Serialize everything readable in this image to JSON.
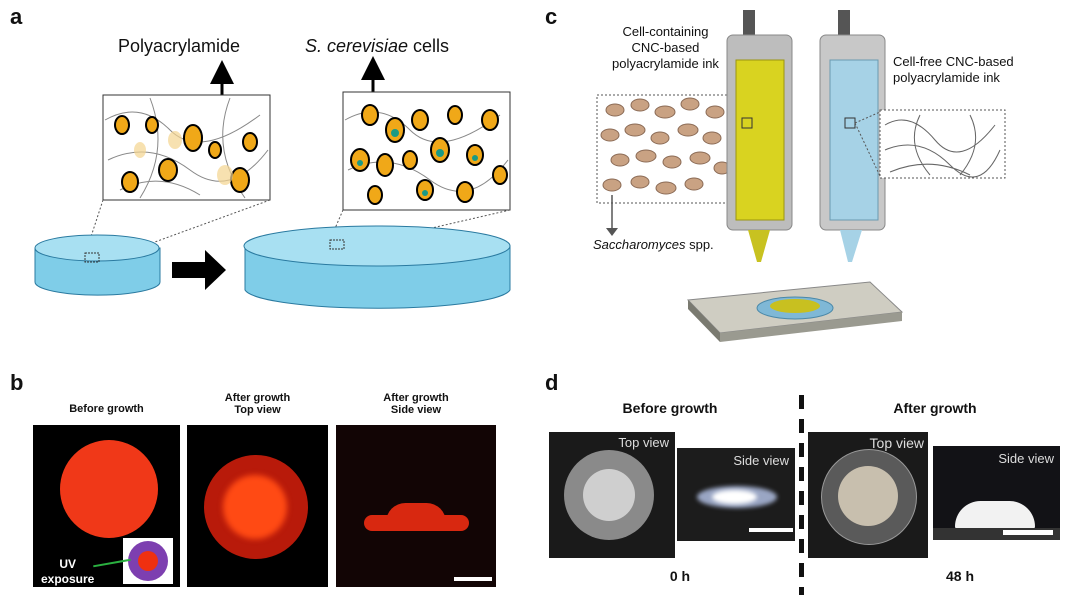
{
  "panels": {
    "a": {
      "label": "a",
      "matrix_label": "Polyacrylamide",
      "cells_label_italic": "S. cerevisiae",
      "cells_label_rest": " cells"
    },
    "b": {
      "label": "b",
      "titles": [
        "Before growth",
        "After growth\nTop view",
        "After growth\nSide view"
      ],
      "inset_label": "UV\nexposure"
    },
    "c": {
      "label": "c",
      "ink_cell": "Cell-containing\nCNC-based\npolyacrylamide ink",
      "ink_free": "Cell-free CNC-based\npolyacrylamide ink",
      "species_italic": "Saccharomyces",
      "species_rest": " spp."
    },
    "d": {
      "label": "d",
      "before": "Before growth",
      "after": "After growth",
      "top_view": "Top  view",
      "side_view": "Side view",
      "time_before": "0 h",
      "time_after": "48 h"
    }
  },
  "colors": {
    "hydrogel": "#7fcde8",
    "yeast": "#f0a818",
    "fluor_red": "#f03010",
    "uv_purple": "#7d3fb0",
    "cell_ink": "#d9d320",
    "free_ink": "#a6d2e6"
  }
}
